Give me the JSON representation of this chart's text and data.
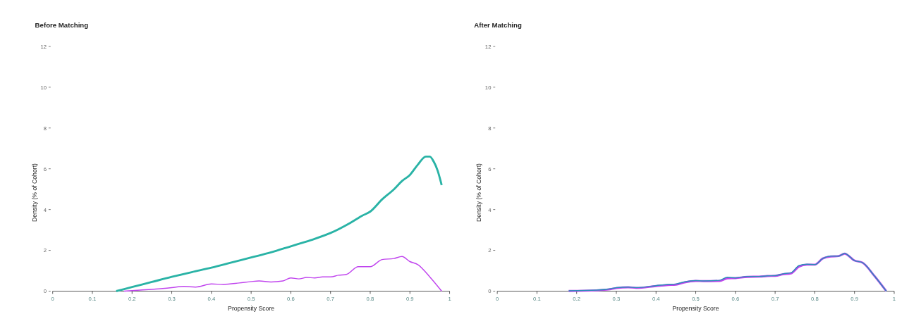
{
  "chart_data": [
    {
      "type": "line",
      "title": "Before Matching",
      "xlabel": "Propensity Score",
      "ylabel": "Density (% of Cohort)",
      "xlim": [
        0,
        1
      ],
      "xticks": [
        0,
        0.1,
        0.2,
        0.3,
        0.4,
        0.5,
        0.6,
        0.7,
        0.8,
        0.9,
        1
      ],
      "ylim": [
        0,
        12
      ],
      "yticks": [
        0,
        2,
        4,
        6,
        8,
        10,
        12
      ],
      "grid": false,
      "series": [
        {
          "color": "#2ab3a6",
          "x": [
            0.16,
            0.2,
            0.25,
            0.3,
            0.35,
            0.4,
            0.45,
            0.5,
            0.55,
            0.6,
            0.65,
            0.7,
            0.75,
            0.78,
            0.8,
            0.83,
            0.86,
            0.88,
            0.9,
            0.92,
            0.94,
            0.95,
            0.96,
            0.97,
            0.98
          ],
          "values": [
            0,
            0.2,
            0.45,
            0.7,
            0.93,
            1.15,
            1.4,
            1.65,
            1.9,
            2.2,
            2.5,
            2.85,
            3.35,
            3.7,
            3.9,
            4.5,
            5.0,
            5.4,
            5.7,
            6.2,
            6.6,
            6.6,
            6.35,
            5.9,
            5.2
          ]
        },
        {
          "color": "#c044ee",
          "x": [
            0.18,
            0.22,
            0.26,
            0.3,
            0.33,
            0.36,
            0.4,
            0.43,
            0.47,
            0.5,
            0.52,
            0.55,
            0.58,
            0.6,
            0.62,
            0.64,
            0.66,
            0.68,
            0.7,
            0.72,
            0.74,
            0.77,
            0.8,
            0.83,
            0.86,
            0.88,
            0.9,
            0.92,
            0.95,
            0.98
          ],
          "values": [
            0,
            0.05,
            0.1,
            0.17,
            0.23,
            0.2,
            0.35,
            0.33,
            0.4,
            0.47,
            0.5,
            0.45,
            0.5,
            0.65,
            0.6,
            0.67,
            0.65,
            0.7,
            0.7,
            0.78,
            0.82,
            1.2,
            1.2,
            1.55,
            1.6,
            1.7,
            1.45,
            1.3,
            0.7,
            0
          ]
        }
      ]
    },
    {
      "type": "line",
      "title": "After Matching",
      "xlabel": "Propensity Score",
      "ylabel": "Density (% of Cohort)",
      "xlim": [
        0,
        1
      ],
      "xticks": [
        0,
        0.1,
        0.2,
        0.3,
        0.4,
        0.5,
        0.6,
        0.7,
        0.8,
        0.9,
        1
      ],
      "ylim": [
        0,
        12
      ],
      "yticks": [
        0,
        2,
        4,
        6,
        8,
        10,
        12
      ],
      "grid": false,
      "series": [
        {
          "color": "#c044ee",
          "x": [
            0.18,
            0.25,
            0.28,
            0.3,
            0.33,
            0.35,
            0.4,
            0.43,
            0.45,
            0.47,
            0.5,
            0.52,
            0.56,
            0.58,
            0.6,
            0.63,
            0.66,
            0.68,
            0.7,
            0.72,
            0.74,
            0.76,
            0.78,
            0.8,
            0.82,
            0.84,
            0.86,
            0.875,
            0.9,
            0.92,
            0.95,
            0.98
          ],
          "values": [
            0.01,
            0.04,
            0.08,
            0.15,
            0.19,
            0.16,
            0.25,
            0.3,
            0.32,
            0.42,
            0.5,
            0.49,
            0.5,
            0.63,
            0.64,
            0.7,
            0.71,
            0.74,
            0.75,
            0.83,
            0.87,
            1.2,
            1.3,
            1.3,
            1.6,
            1.7,
            1.72,
            1.84,
            1.5,
            1.4,
            0.75,
            0
          ]
        },
        {
          "color": "#2a8fb8",
          "x": [
            0.18,
            0.25,
            0.28,
            0.3,
            0.33,
            0.35,
            0.4,
            0.43,
            0.45,
            0.47,
            0.5,
            0.52,
            0.56,
            0.58,
            0.6,
            0.63,
            0.66,
            0.68,
            0.7,
            0.72,
            0.74,
            0.76,
            0.78,
            0.8,
            0.82,
            0.84,
            0.86,
            0.875,
            0.9,
            0.92,
            0.95,
            0.98
          ],
          "values": [
            0.02,
            0.05,
            0.1,
            0.17,
            0.2,
            0.17,
            0.27,
            0.33,
            0.35,
            0.45,
            0.52,
            0.5,
            0.53,
            0.68,
            0.65,
            0.72,
            0.72,
            0.75,
            0.76,
            0.85,
            0.9,
            1.25,
            1.32,
            1.3,
            1.6,
            1.72,
            1.72,
            1.85,
            1.5,
            1.4,
            0.75,
            0
          ]
        }
      ]
    }
  ]
}
